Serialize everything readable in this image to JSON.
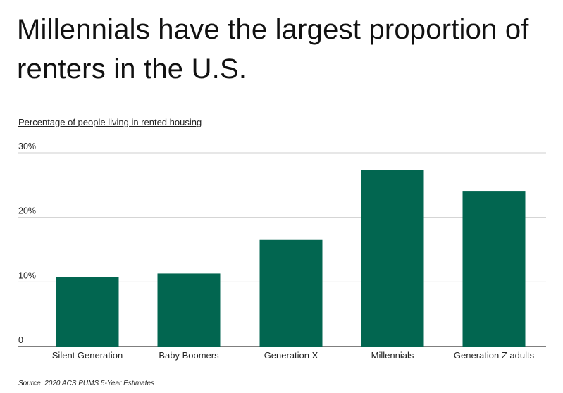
{
  "title": "Millennials have the largest proportion of renters in the U.S.",
  "subtitle": "Percentage of people living in rented housing",
  "source": "Source:  2020 ACS PUMS 5-Year Estimates",
  "colors": {
    "bar": "#026650",
    "grid": "#cfcfcf",
    "axis": "#333333"
  },
  "chart_data": {
    "type": "bar",
    "categories": [
      "Silent Generation",
      "Baby Boomers",
      "Generation X",
      "Millennials",
      "Generation Z adults"
    ],
    "values": [
      10.7,
      11.3,
      16.5,
      27.3,
      24.1
    ],
    "ytick_labels": [
      "0",
      "10%",
      "20%",
      "30%"
    ],
    "ytick_values": [
      0,
      10,
      20,
      30
    ],
    "ylim": [
      0,
      30
    ],
    "grid": true,
    "legend": "none"
  }
}
